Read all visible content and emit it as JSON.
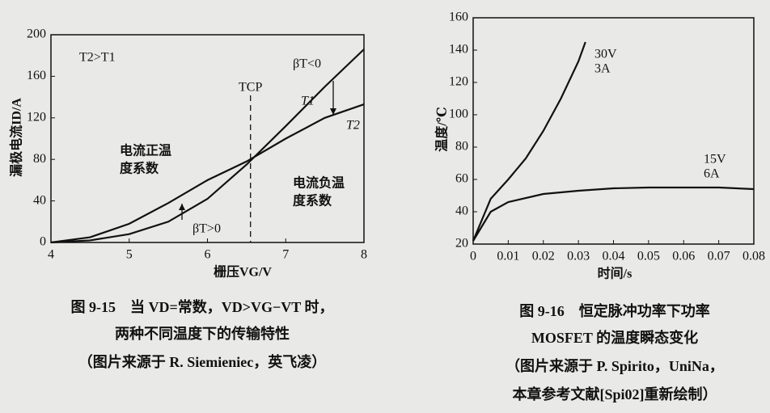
{
  "chart_data": [
    {
      "type": "line",
      "x_label": "栅压VG/V",
      "y_label": "漏极电流ID/A",
      "x": [
        4,
        4.5,
        5,
        5.5,
        6,
        6.5,
        7,
        7.5,
        8
      ],
      "series": [
        {
          "name": "T1",
          "color": "#111111",
          "values": [
            0,
            2,
            8,
            20,
            42,
            75,
            112,
            150,
            186
          ]
        },
        {
          "name": "T2",
          "color": "#111111",
          "values": [
            0,
            5,
            18,
            38,
            60,
            78,
            100,
            120,
            133
          ]
        }
      ],
      "xlim": [
        4,
        8
      ],
      "xticks": [
        4,
        5,
        6,
        7,
        8
      ],
      "ylim": [
        0,
        200
      ],
      "yticks": [
        0,
        40,
        80,
        120,
        160,
        200
      ],
      "vline": {
        "x": 6.55,
        "label": "TCP"
      },
      "annotations": [
        "T2>T1",
        "βT<0",
        "电流正温",
        "度系数",
        "电流负温",
        "度系数",
        "βT>0"
      ],
      "caption": [
        "图 9-15　当 VD=常数，VD>VG−VT 时，",
        "两种不同温度下的传输特性",
        "（图片来源于 R. Siemieniec，英飞凌）"
      ]
    },
    {
      "type": "line",
      "x_label": "时间/s",
      "y_label": "温度/℃",
      "series": [
        {
          "label": [
            "30V",
            "3A"
          ],
          "color": "#111111",
          "x": [
            0,
            0.005,
            0.01,
            0.015,
            0.02,
            0.025,
            0.03,
            0.032
          ],
          "values": [
            22,
            48,
            60,
            73,
            90,
            110,
            133,
            145
          ]
        },
        {
          "label": [
            "15V",
            "6A"
          ],
          "color": "#111111",
          "x": [
            0,
            0.005,
            0.01,
            0.02,
            0.03,
            0.04,
            0.05,
            0.06,
            0.07,
            0.08
          ],
          "values": [
            22,
            40,
            46,
            51,
            53,
            54.5,
            55,
            55,
            55,
            54
          ]
        }
      ],
      "xlim": [
        0,
        0.08
      ],
      "xticks": [
        0,
        0.01,
        0.02,
        0.03,
        0.04,
        0.05,
        0.06,
        0.07,
        0.08
      ],
      "ylim": [
        20,
        160
      ],
      "yticks": [
        20,
        40,
        60,
        80,
        100,
        120,
        140,
        160
      ],
      "caption": [
        "图 9-16　恒定脉冲功率下功率",
        "MOSFET 的温度瞬态变化",
        "（图片来源于 P. Spirito，UniNa，",
        "本章参考文献[Spi02]重新绘制）"
      ]
    }
  ]
}
